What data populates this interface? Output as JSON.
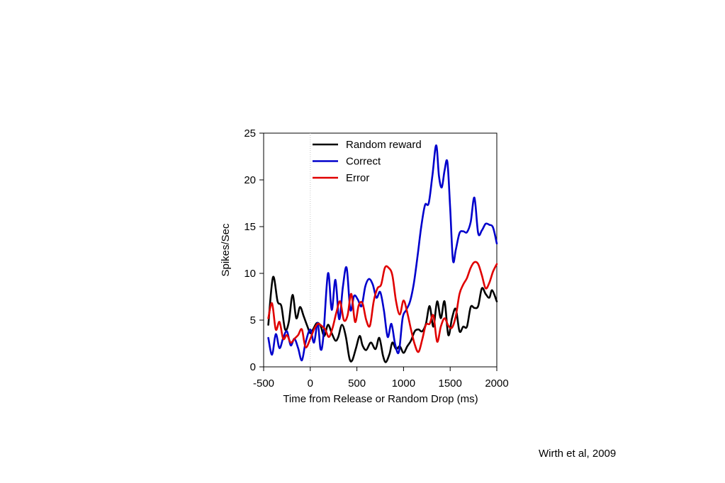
{
  "citation": "Wirth et al, 2009",
  "chart_data": {
    "type": "line",
    "title": "",
    "xlabel": "Time from Release or Random Drop (ms)",
    "ylabel": "Spikes/Sec",
    "xlim": [
      -500,
      2000
    ],
    "ylim": [
      0,
      25
    ],
    "xticks": [
      -500,
      0,
      500,
      1000,
      1500,
      2000
    ],
    "yticks": [
      0,
      5,
      10,
      15,
      20,
      25
    ],
    "xtick_labels": [
      "-500",
      "0",
      "500",
      "1000",
      "1500",
      "2000"
    ],
    "ytick_labels": [
      "0",
      "5",
      "10",
      "15",
      "20",
      "25"
    ],
    "grid": false,
    "legend_position": "top-center",
    "reference_line": {
      "x": 0,
      "style": "dotted",
      "color": "#c8c8c8"
    },
    "series": [
      {
        "name": "Random reward",
        "color": "#000000",
        "points": [
          [
            -450,
            4.5
          ],
          [
            -400,
            9.6
          ],
          [
            -350,
            7.0
          ],
          [
            -310,
            6.5
          ],
          [
            -270,
            4.0
          ],
          [
            -230,
            4.8
          ],
          [
            -190,
            7.7
          ],
          [
            -150,
            5.2
          ],
          [
            -110,
            6.4
          ],
          [
            -70,
            5.4
          ],
          [
            -30,
            4.3
          ],
          [
            0,
            3.6
          ],
          [
            30,
            4.0
          ],
          [
            70,
            4.7
          ],
          [
            110,
            4.4
          ],
          [
            150,
            3.3
          ],
          [
            190,
            4.5
          ],
          [
            230,
            3.6
          ],
          [
            270,
            2.8
          ],
          [
            300,
            3.2
          ],
          [
            340,
            4.5
          ],
          [
            380,
            3.3
          ],
          [
            420,
            0.9
          ],
          [
            450,
            0.7
          ],
          [
            490,
            2.0
          ],
          [
            530,
            3.3
          ],
          [
            560,
            2.3
          ],
          [
            600,
            1.8
          ],
          [
            650,
            2.6
          ],
          [
            700,
            1.9
          ],
          [
            740,
            3.1
          ],
          [
            780,
            1.2
          ],
          [
            810,
            0.5
          ],
          [
            850,
            1.4
          ],
          [
            880,
            2.6
          ],
          [
            920,
            1.9
          ],
          [
            960,
            2.2
          ],
          [
            1000,
            1.5
          ],
          [
            1040,
            2.2
          ],
          [
            1080,
            2.8
          ],
          [
            1120,
            3.8
          ],
          [
            1160,
            4.0
          ],
          [
            1200,
            3.8
          ],
          [
            1240,
            4.6
          ],
          [
            1280,
            6.5
          ],
          [
            1320,
            4.3
          ],
          [
            1360,
            7.0
          ],
          [
            1400,
            5.2
          ],
          [
            1440,
            7.0
          ],
          [
            1480,
            3.4
          ],
          [
            1520,
            5.2
          ],
          [
            1560,
            6.2
          ],
          [
            1600,
            3.8
          ],
          [
            1640,
            4.3
          ],
          [
            1680,
            4.3
          ],
          [
            1720,
            6.4
          ],
          [
            1760,
            6.3
          ],
          [
            1800,
            6.5
          ],
          [
            1840,
            8.4
          ],
          [
            1880,
            7.8
          ],
          [
            1920,
            7.4
          ],
          [
            1950,
            8.2
          ],
          [
            2000,
            7.0
          ]
        ]
      },
      {
        "name": "Correct",
        "color": "#0000cc",
        "points": [
          [
            -450,
            3.1
          ],
          [
            -410,
            1.3
          ],
          [
            -370,
            3.5
          ],
          [
            -330,
            2.0
          ],
          [
            -290,
            3.1
          ],
          [
            -250,
            3.8
          ],
          [
            -210,
            2.3
          ],
          [
            -170,
            3.0
          ],
          [
            -130,
            2.0
          ],
          [
            -90,
            0.7
          ],
          [
            -50,
            2.6
          ],
          [
            0,
            4.0
          ],
          [
            40,
            2.6
          ],
          [
            80,
            4.7
          ],
          [
            110,
            1.9
          ],
          [
            140,
            3.2
          ],
          [
            190,
            10.0
          ],
          [
            230,
            6.1
          ],
          [
            270,
            9.3
          ],
          [
            310,
            5.1
          ],
          [
            350,
            8.6
          ],
          [
            390,
            10.6
          ],
          [
            430,
            6.1
          ],
          [
            470,
            7.6
          ],
          [
            510,
            7.2
          ],
          [
            550,
            6.5
          ],
          [
            590,
            8.6
          ],
          [
            630,
            9.4
          ],
          [
            670,
            8.8
          ],
          [
            710,
            7.4
          ],
          [
            750,
            8.0
          ],
          [
            790,
            6.0
          ],
          [
            830,
            3.2
          ],
          [
            870,
            4.6
          ],
          [
            910,
            2.4
          ],
          [
            950,
            1.6
          ],
          [
            990,
            5.2
          ],
          [
            1030,
            6.1
          ],
          [
            1070,
            7.0
          ],
          [
            1110,
            8.9
          ],
          [
            1150,
            11.8
          ],
          [
            1190,
            15.0
          ],
          [
            1230,
            17.3
          ],
          [
            1270,
            17.5
          ],
          [
            1310,
            20.5
          ],
          [
            1350,
            23.7
          ],
          [
            1380,
            20.4
          ],
          [
            1410,
            19.2
          ],
          [
            1440,
            21.0
          ],
          [
            1470,
            21.9
          ],
          [
            1500,
            17.0
          ],
          [
            1530,
            11.4
          ],
          [
            1560,
            12.5
          ],
          [
            1600,
            14.3
          ],
          [
            1640,
            14.5
          ],
          [
            1680,
            14.4
          ],
          [
            1720,
            15.5
          ],
          [
            1760,
            18.1
          ],
          [
            1800,
            14.3
          ],
          [
            1840,
            14.6
          ],
          [
            1880,
            15.3
          ],
          [
            1920,
            15.2
          ],
          [
            1960,
            14.9
          ],
          [
            2000,
            13.2
          ]
        ]
      },
      {
        "name": "Error",
        "color": "#e00000",
        "points": [
          [
            -450,
            5.2
          ],
          [
            -410,
            6.8
          ],
          [
            -370,
            4.0
          ],
          [
            -330,
            4.8
          ],
          [
            -290,
            3.0
          ],
          [
            -250,
            3.4
          ],
          [
            -210,
            2.6
          ],
          [
            -170,
            3.0
          ],
          [
            -130,
            3.4
          ],
          [
            -90,
            4.0
          ],
          [
            -50,
            2.1
          ],
          [
            0,
            3.0
          ],
          [
            40,
            4.0
          ],
          [
            80,
            4.6
          ],
          [
            120,
            4.4
          ],
          [
            160,
            4.0
          ],
          [
            200,
            3.2
          ],
          [
            240,
            4.2
          ],
          [
            280,
            5.8
          ],
          [
            320,
            7.0
          ],
          [
            360,
            5.0
          ],
          [
            400,
            5.5
          ],
          [
            440,
            7.8
          ],
          [
            480,
            4.8
          ],
          [
            520,
            6.6
          ],
          [
            560,
            6.8
          ],
          [
            600,
            5.0
          ],
          [
            640,
            4.4
          ],
          [
            680,
            7.0
          ],
          [
            720,
            8.4
          ],
          [
            760,
            8.8
          ],
          [
            800,
            10.6
          ],
          [
            840,
            10.6
          ],
          [
            880,
            9.8
          ],
          [
            920,
            7.0
          ],
          [
            960,
            5.6
          ],
          [
            1000,
            7.1
          ],
          [
            1040,
            5.8
          ],
          [
            1080,
            4.0
          ],
          [
            1120,
            2.4
          ],
          [
            1160,
            1.6
          ],
          [
            1200,
            2.9
          ],
          [
            1240,
            4.5
          ],
          [
            1280,
            4.6
          ],
          [
            1320,
            5.5
          ],
          [
            1360,
            2.7
          ],
          [
            1400,
            4.3
          ],
          [
            1440,
            5.2
          ],
          [
            1480,
            4.4
          ],
          [
            1520,
            4.2
          ],
          [
            1560,
            5.4
          ],
          [
            1600,
            7.8
          ],
          [
            1640,
            8.8
          ],
          [
            1680,
            9.5
          ],
          [
            1720,
            10.6
          ],
          [
            1760,
            11.2
          ],
          [
            1800,
            11.0
          ],
          [
            1840,
            9.8
          ],
          [
            1880,
            8.4
          ],
          [
            1920,
            9.0
          ],
          [
            1960,
            10.2
          ],
          [
            2000,
            11.0
          ]
        ]
      }
    ]
  }
}
